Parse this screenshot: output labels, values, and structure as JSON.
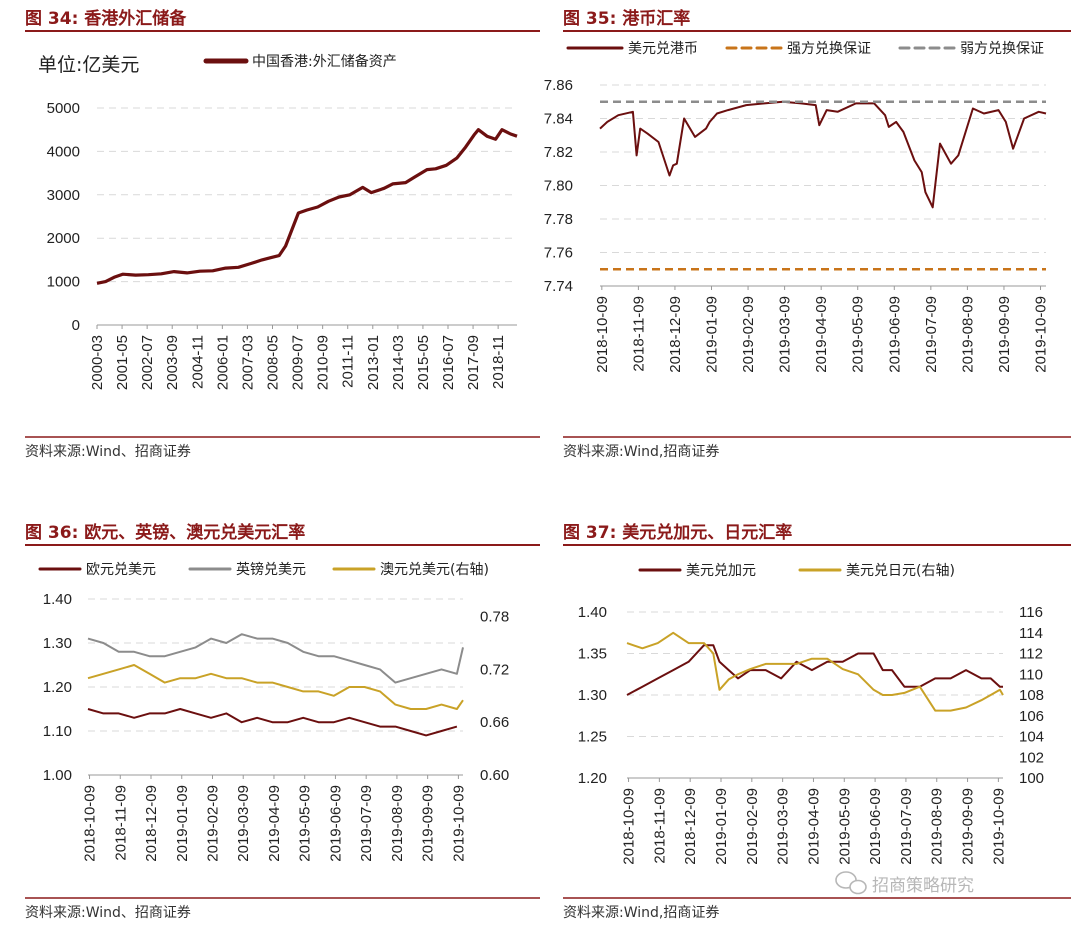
{
  "colors": {
    "title": "#8B1A1A",
    "rule": "#8B1A1A",
    "maroon": "#6B0F0F",
    "gold": "#C9A227",
    "gray": "#8C8C8C",
    "orange_dash": "#C8741A",
    "gray_dash": "#8C8C8C",
    "grid": "#D9D9D9"
  },
  "watermark": "招商策略研究",
  "watermark_icon": "wechat-icon",
  "panels": [
    {
      "title": "图 34:  香港外汇储备",
      "source": "资料来源:Wind、招商证券",
      "chart_data": {
        "type": "line",
        "unit_label": "单位:亿美元",
        "ylim": [
          0,
          5000
        ],
        "yticks": [
          "0",
          "1000",
          "2000",
          "3000",
          "4000",
          "5000"
        ],
        "x_ticks": [
          "2000-03",
          "2001-05",
          "2002-07",
          "2003-09",
          "2004-11",
          "2006-01",
          "2007-03",
          "2008-05",
          "2009-07",
          "2010-09",
          "2011-11",
          "2013-01",
          "2014-03",
          "2015-05",
          "2016-07",
          "2017-09",
          "2018-11"
        ],
        "grid": true,
        "legend_position": "top",
        "series": [
          {
            "name": "中国香港:外汇储备资产",
            "color": "maroon",
            "x": [
              2000.2,
              2000.6,
              2001.0,
              2001.4,
              2002.0,
              2002.6,
              2003.2,
              2003.8,
              2004.4,
              2005.0,
              2005.6,
              2006.2,
              2006.8,
              2007.4,
              2007.9,
              2008.3,
              2008.7,
              2009.0,
              2009.3,
              2009.6,
              2010.0,
              2010.5,
              2011.0,
              2011.5,
              2012.0,
              2012.6,
              2013.0,
              2013.6,
              2014.0,
              2014.6,
              2015.0,
              2015.6,
              2016.0,
              2016.5,
              2017.0,
              2017.4,
              2017.8,
              2018.0,
              2018.4,
              2018.8,
              2019.1,
              2019.5,
              2019.8
            ],
            "values": [
              960,
              1000,
              1100,
              1170,
              1150,
              1160,
              1180,
              1230,
              1200,
              1240,
              1250,
              1310,
              1330,
              1420,
              1500,
              1550,
              1600,
              1820,
              2200,
              2580,
              2650,
              2720,
              2850,
              2950,
              3000,
              3170,
              3050,
              3150,
              3250,
              3280,
              3400,
              3580,
              3600,
              3680,
              3850,
              4100,
              4380,
              4500,
              4350,
              4280,
              4500,
              4400,
              4350
            ]
          }
        ]
      }
    },
    {
      "title": "图 35:  港币汇率",
      "source": "资料来源:Wind,招商证券",
      "chart_data": {
        "type": "line",
        "ylim": [
          7.74,
          7.86
        ],
        "yticks": [
          "7.74",
          "7.76",
          "7.78",
          "7.80",
          "7.82",
          "7.84",
          "7.86"
        ],
        "x_ticks": [
          "2018-10-09",
          "2018-11-09",
          "2018-12-09",
          "2019-01-09",
          "2019-02-09",
          "2019-03-09",
          "2019-04-09",
          "2019-05-09",
          "2019-06-09",
          "2019-07-09",
          "2019-08-09",
          "2019-09-09",
          "2019-10-09"
        ],
        "grid": true,
        "legend_position": "top",
        "series": [
          {
            "name": "美元兑港币",
            "color": "maroon",
            "dash": false,
            "x": [
              0,
              0.2,
              0.5,
              0.9,
              1.0,
              1.1,
              1.3,
              1.6,
              1.9,
              2.0,
              2.1,
              2.3,
              2.6,
              2.9,
              3.0,
              3.2,
              3.5,
              4.0,
              4.5,
              5.0,
              5.5,
              5.9,
              6.0,
              6.2,
              6.5,
              7.0,
              7.5,
              7.8,
              7.9,
              8.1,
              8.3,
              8.6,
              8.8,
              8.9,
              9.1,
              9.3,
              9.6,
              9.8,
              10.0,
              10.2,
              10.5,
              10.9,
              11.1,
              11.3,
              11.6,
              12.0,
              12.2
            ],
            "values": [
              7.834,
              7.838,
              7.842,
              7.844,
              7.818,
              7.834,
              7.831,
              7.826,
              7.806,
              7.812,
              7.813,
              7.84,
              7.829,
              7.834,
              7.838,
              7.843,
              7.845,
              7.848,
              7.849,
              7.85,
              7.849,
              7.848,
              7.836,
              7.845,
              7.844,
              7.849,
              7.849,
              7.842,
              7.835,
              7.838,
              7.832,
              7.815,
              7.808,
              7.796,
              7.787,
              7.825,
              7.813,
              7.818,
              7.832,
              7.846,
              7.843,
              7.845,
              7.838,
              7.822,
              7.84,
              7.844,
              7.843
            ]
          },
          {
            "name": "强方兑换保证",
            "color": "orange_dash",
            "dash": true,
            "constant": 7.75
          },
          {
            "name": "弱方兑换保证",
            "color": "gray_dash",
            "dash": true,
            "constant": 7.85
          }
        ]
      }
    },
    {
      "title": "图 36:  欧元、英镑、澳元兑美元汇率",
      "source": "资料来源:Wind、招商证券",
      "chart_data": {
        "type": "line",
        "ylim": [
          1.0,
          1.4
        ],
        "yticks": [
          "1.00",
          "1.10",
          "1.20",
          "1.30",
          "1.40"
        ],
        "y2lim": [
          0.6,
          0.8
        ],
        "y2ticks": [
          "0.60",
          "0.66",
          "0.72",
          "0.78"
        ],
        "x_ticks": [
          "2018-10-09",
          "2018-11-09",
          "2018-12-09",
          "2019-01-09",
          "2019-02-09",
          "2019-03-09",
          "2019-04-09",
          "2019-05-09",
          "2019-06-09",
          "2019-07-09",
          "2019-08-09",
          "2019-09-09",
          "2019-10-09"
        ],
        "grid": true,
        "legend_position": "top",
        "series": [
          {
            "name": "欧元兑美元",
            "color": "maroon",
            "axis": "left",
            "x": [
              0,
              0.5,
              1.0,
              1.5,
              2.0,
              2.5,
              3.0,
              3.5,
              4.0,
              4.5,
              5.0,
              5.5,
              6.0,
              6.5,
              7.0,
              7.5,
              8.0,
              8.5,
              9.0,
              9.5,
              10.0,
              10.5,
              11.0,
              11.5,
              12.0
            ],
            "values": [
              1.15,
              1.14,
              1.14,
              1.13,
              1.14,
              1.14,
              1.15,
              1.14,
              1.13,
              1.14,
              1.12,
              1.13,
              1.12,
              1.12,
              1.13,
              1.12,
              1.12,
              1.13,
              1.12,
              1.11,
              1.11,
              1.1,
              1.09,
              1.1,
              1.11
            ]
          },
          {
            "name": "英镑兑美元",
            "color": "gray",
            "axis": "left",
            "x": [
              0,
              0.5,
              1.0,
              1.5,
              2.0,
              2.5,
              3.0,
              3.5,
              4.0,
              4.5,
              5.0,
              5.5,
              6.0,
              6.5,
              7.0,
              7.5,
              8.0,
              8.5,
              9.0,
              9.5,
              10.0,
              10.5,
              11.0,
              11.5,
              12.0,
              12.2
            ],
            "values": [
              1.31,
              1.3,
              1.28,
              1.28,
              1.27,
              1.27,
              1.28,
              1.29,
              1.31,
              1.3,
              1.32,
              1.31,
              1.31,
              1.3,
              1.28,
              1.27,
              1.27,
              1.26,
              1.25,
              1.24,
              1.21,
              1.22,
              1.23,
              1.24,
              1.23,
              1.29
            ]
          },
          {
            "name": "澳元兑美元(右轴)",
            "color": "gold",
            "axis": "right",
            "x": [
              0,
              0.5,
              1.0,
              1.5,
              2.0,
              2.5,
              3.0,
              3.5,
              4.0,
              4.5,
              5.0,
              5.5,
              6.0,
              6.5,
              7.0,
              7.5,
              8.0,
              8.5,
              9.0,
              9.5,
              10.0,
              10.5,
              11.0,
              11.5,
              12.0,
              12.2
            ],
            "values": [
              0.71,
              0.715,
              0.72,
              0.725,
              0.715,
              0.705,
              0.71,
              0.71,
              0.715,
              0.71,
              0.71,
              0.705,
              0.705,
              0.7,
              0.695,
              0.695,
              0.69,
              0.7,
              0.7,
              0.695,
              0.68,
              0.675,
              0.675,
              0.68,
              0.675,
              0.685
            ]
          }
        ]
      }
    },
    {
      "title": "图 37:  美元兑加元、日元汇率",
      "source": "资料来源:Wind,招商证券",
      "chart_data": {
        "type": "line",
        "ylim": [
          1.2,
          1.4
        ],
        "yticks": [
          "1.20",
          "1.25",
          "1.30",
          "1.35",
          "1.40"
        ],
        "y2lim": [
          100,
          116
        ],
        "y2ticks": [
          "100",
          "102",
          "104",
          "106",
          "108",
          "110",
          "112",
          "114",
          "116"
        ],
        "x_ticks": [
          "2018-10-09",
          "2018-11-09",
          "2018-12-09",
          "2019-01-09",
          "2019-02-09",
          "2019-03-09",
          "2019-04-09",
          "2019-05-09",
          "2019-06-09",
          "2019-07-09",
          "2019-08-09",
          "2019-09-09",
          "2019-10-09"
        ],
        "grid": true,
        "legend_position": "top",
        "series": [
          {
            "name": "美元兑加元",
            "color": "maroon",
            "axis": "left",
            "x": [
              0,
              0.5,
              1.0,
              1.5,
              2.0,
              2.5,
              2.8,
              3.0,
              3.3,
              3.6,
              4.0,
              4.5,
              5.0,
              5.5,
              6.0,
              6.5,
              7.0,
              7.5,
              8.0,
              8.3,
              8.6,
              9.0,
              9.5,
              10.0,
              10.5,
              11.0,
              11.5,
              11.8,
              12.1,
              12.2
            ],
            "values": [
              1.3,
              1.31,
              1.32,
              1.33,
              1.34,
              1.36,
              1.36,
              1.34,
              1.33,
              1.32,
              1.33,
              1.33,
              1.32,
              1.34,
              1.33,
              1.34,
              1.34,
              1.35,
              1.35,
              1.33,
              1.33,
              1.31,
              1.31,
              1.32,
              1.32,
              1.33,
              1.32,
              1.32,
              1.31,
              1.31
            ]
          },
          {
            "name": "美元兑日元(右轴)",
            "color": "gold",
            "axis": "right",
            "x": [
              0,
              0.5,
              1.0,
              1.5,
              2.0,
              2.5,
              2.8,
              3.0,
              3.3,
              3.6,
              4.0,
              4.5,
              5.0,
              5.5,
              6.0,
              6.5,
              7.0,
              7.5,
              8.0,
              8.3,
              8.6,
              9.0,
              9.5,
              10.0,
              10.5,
              11.0,
              11.5,
              11.8,
              12.1,
              12.2
            ],
            "values": [
              113,
              112.5,
              113,
              114,
              113,
              113,
              112,
              108.5,
              109.5,
              110,
              110.5,
              111,
              111,
              111,
              111.5,
              111.5,
              110.5,
              110,
              108.5,
              108,
              108,
              108.2,
              108.8,
              106.5,
              106.5,
              106.8,
              107.5,
              108,
              108.5,
              108
            ]
          }
        ]
      }
    }
  ]
}
